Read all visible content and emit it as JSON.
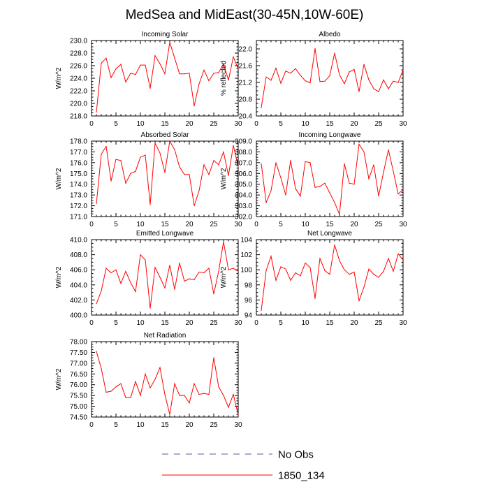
{
  "title": "MedSea and MidEast(30-45N,10W-60E)",
  "legend": [
    {
      "label": "No Obs",
      "color": "#5a5aa8",
      "style": "dashed"
    },
    {
      "label": "1850_134",
      "color": "#ff0000",
      "style": "solid"
    }
  ],
  "chart_data": [
    {
      "type": "line",
      "title": "Incoming Solar",
      "ylabel": "W/m^2",
      "xlim": [
        0,
        30
      ],
      "ylim": [
        218,
        230
      ],
      "xticks": [
        0,
        5,
        10,
        15,
        20,
        25,
        30
      ],
      "yticks": [
        218,
        220,
        222,
        224,
        226,
        228,
        230
      ],
      "ytick_labels": [
        "218.0",
        "220.0",
        "222.0",
        "224.0",
        "226.0",
        "228.0",
        "230.0"
      ],
      "series": [
        {
          "name": "1850_134",
          "color": "#ff0000",
          "x": [
            1,
            2,
            3,
            4,
            5,
            6,
            7,
            8,
            9,
            10,
            11,
            12,
            13,
            14,
            15,
            16,
            17,
            18,
            19,
            20,
            21,
            22,
            23,
            24,
            25,
            26,
            27,
            28,
            29,
            30
          ],
          "values": [
            218.6,
            226.4,
            227.2,
            224.1,
            225.5,
            226.2,
            223.4,
            224.8,
            224.6,
            226.1,
            226.1,
            222.4,
            227.6,
            226.3,
            224.7,
            229.7,
            227.2,
            224.7,
            224.7,
            224.8,
            219.6,
            223.1,
            225.3,
            223.6,
            224.8,
            224.9,
            226.3,
            223.7,
            227.4,
            225.5
          ]
        }
      ]
    },
    {
      "type": "line",
      "title": "Albedo",
      "ylabel": "% reflected",
      "xlim": [
        0,
        30
      ],
      "ylim": [
        20.4,
        22.2
      ],
      "xticks": [
        0,
        5,
        10,
        15,
        20,
        25,
        30
      ],
      "yticks": [
        20.4,
        20.8,
        21.2,
        21.6,
        22.0
      ],
      "ytick_labels": [
        "20.4",
        "20.8",
        "21.2",
        "21.6",
        "22.0"
      ],
      "series": [
        {
          "name": "1850_134",
          "color": "#ff0000",
          "x": [
            1,
            2,
            3,
            4,
            5,
            6,
            7,
            8,
            9,
            10,
            11,
            12,
            13,
            14,
            15,
            16,
            17,
            18,
            19,
            20,
            21,
            22,
            23,
            24,
            25,
            26,
            27,
            28,
            29,
            30
          ],
          "values": [
            20.6,
            21.33,
            21.25,
            21.54,
            21.18,
            21.47,
            21.42,
            21.53,
            21.37,
            21.24,
            21.19,
            22.01,
            21.22,
            21.23,
            21.36,
            21.9,
            21.38,
            21.17,
            21.45,
            21.51,
            20.98,
            21.63,
            21.26,
            21.05,
            20.98,
            21.26,
            21.05,
            21.23,
            21.2,
            21.5
          ]
        }
      ]
    },
    {
      "type": "line",
      "title": "Absorbed Solar",
      "ylabel": "W/m^2",
      "xlim": [
        0,
        30
      ],
      "ylim": [
        171,
        178
      ],
      "xticks": [
        0,
        5,
        10,
        15,
        20,
        25,
        30
      ],
      "yticks": [
        171,
        172,
        173,
        174,
        175,
        176,
        177,
        178
      ],
      "ytick_labels": [
        "171.0",
        "172.0",
        "173.0",
        "174.0",
        "175.0",
        "176.0",
        "177.0",
        "178.0"
      ],
      "series": [
        {
          "name": "1850_134",
          "color": "#ff0000",
          "x": [
            1,
            2,
            3,
            4,
            5,
            6,
            7,
            8,
            9,
            10,
            11,
            12,
            13,
            14,
            15,
            16,
            17,
            18,
            19,
            20,
            21,
            22,
            23,
            24,
            25,
            26,
            27,
            28,
            29,
            30
          ],
          "values": [
            172.2,
            176.8,
            177.5,
            174.3,
            176.3,
            176.2,
            174.1,
            175.0,
            175.2,
            176.5,
            176.7,
            172.1,
            177.8,
            176.9,
            175.1,
            178.0,
            177.2,
            175.6,
            174.9,
            174.9,
            172.0,
            173.4,
            175.8,
            174.9,
            176.2,
            175.8,
            177.0,
            174.8,
            177.6,
            175.6
          ]
        }
      ]
    },
    {
      "type": "line",
      "title": "Incoming Longwave",
      "ylabel": "W/m^2",
      "xlim": [
        0,
        30
      ],
      "ylim": [
        302,
        309
      ],
      "xticks": [
        0,
        5,
        10,
        15,
        20,
        25,
        30
      ],
      "yticks": [
        302,
        303,
        304,
        305,
        306,
        307,
        308,
        309
      ],
      "ytick_labels": [
        "302.0",
        "303.0",
        "304.0",
        "305.0",
        "306.0",
        "307.0",
        "308.0",
        "309.0"
      ],
      "series": [
        {
          "name": "1850_134",
          "color": "#ff0000",
          "x": [
            1,
            2,
            3,
            4,
            5,
            6,
            7,
            8,
            9,
            10,
            11,
            12,
            13,
            14,
            15,
            16,
            17,
            18,
            19,
            20,
            21,
            22,
            23,
            24,
            25,
            26,
            27,
            28,
            29,
            30
          ],
          "values": [
            306.9,
            303.3,
            304.4,
            307.0,
            305.6,
            304.0,
            307.2,
            304.6,
            303.9,
            307.1,
            307.0,
            304.7,
            304.8,
            305.1,
            304.2,
            303.3,
            302.2,
            306.9,
            305.1,
            305.0,
            308.7,
            308.0,
            305.5,
            306.8,
            303.9,
            306.1,
            308.2,
            306.2,
            304.1,
            304.5
          ]
        }
      ]
    },
    {
      "type": "line",
      "title": "Emitted Longwave",
      "ylabel": "W/m^2",
      "xlim": [
        0,
        30
      ],
      "ylim": [
        400,
        410
      ],
      "xticks": [
        0,
        5,
        10,
        15,
        20,
        25,
        30
      ],
      "yticks": [
        400,
        402,
        404,
        406,
        408,
        410
      ],
      "ytick_labels": [
        "400.0",
        "402.0",
        "404.0",
        "406.0",
        "408.0",
        "410.0"
      ],
      "series": [
        {
          "name": "1850_134",
          "color": "#ff0000",
          "x": [
            1,
            2,
            3,
            4,
            5,
            6,
            7,
            8,
            9,
            10,
            11,
            12,
            13,
            14,
            15,
            16,
            17,
            18,
            19,
            20,
            21,
            22,
            23,
            24,
            25,
            26,
            27,
            28,
            29,
            30
          ],
          "values": [
            401.5,
            403.2,
            406.2,
            405.6,
            406.0,
            404.2,
            405.8,
            404.3,
            403.1,
            408.0,
            407.3,
            400.9,
            406.3,
            405.0,
            403.6,
            406.6,
            403.4,
            406.9,
            404.5,
            404.8,
            404.7,
            405.7,
            405.6,
            406.2,
            402.8,
            405.8,
            409.7,
            406.0,
            406.2,
            405.8
          ]
        }
      ]
    },
    {
      "type": "line",
      "title": "Net Longwave",
      "ylabel": "W/m^2",
      "xlim": [
        0,
        30
      ],
      "ylim": [
        94,
        104
      ],
      "xticks": [
        0,
        5,
        10,
        15,
        20,
        25,
        30
      ],
      "yticks": [
        94,
        96,
        98,
        100,
        102,
        104
      ],
      "ytick_labels": [
        "94",
        "96",
        "98",
        "100",
        "102",
        "104"
      ],
      "series": [
        {
          "name": "1850_134",
          "color": "#ff0000",
          "x": [
            1,
            2,
            3,
            4,
            5,
            6,
            7,
            8,
            9,
            10,
            11,
            12,
            13,
            14,
            15,
            16,
            17,
            18,
            19,
            20,
            21,
            22,
            23,
            24,
            25,
            26,
            27,
            28,
            29,
            30
          ],
          "values": [
            94.6,
            99.9,
            101.8,
            98.6,
            100.4,
            100.1,
            98.6,
            99.6,
            99.2,
            100.9,
            100.3,
            96.2,
            101.5,
            99.9,
            99.4,
            103.3,
            101.2,
            100.0,
            99.4,
            99.7,
            95.9,
            97.7,
            100.1,
            99.4,
            99.0,
            99.8,
            101.5,
            99.8,
            102.1,
            101.3
          ]
        }
      ]
    },
    {
      "type": "line",
      "title": "Net Radiation",
      "ylabel": "W/m^2",
      "xlim": [
        0,
        30
      ],
      "ylim": [
        74.5,
        78.0
      ],
      "xticks": [
        0,
        5,
        10,
        15,
        20,
        25,
        30
      ],
      "yticks": [
        74.5,
        75.0,
        75.5,
        76.0,
        76.5,
        77.0,
        77.5,
        78.0
      ],
      "ytick_labels": [
        "74.50",
        "75.00",
        "75.50",
        "76.00",
        "76.50",
        "77.00",
        "77.50",
        "78.00"
      ],
      "series": [
        {
          "name": "1850_134",
          "color": "#ff0000",
          "x": [
            1,
            2,
            3,
            4,
            5,
            6,
            7,
            8,
            9,
            10,
            11,
            12,
            13,
            14,
            15,
            16,
            17,
            18,
            19,
            20,
            21,
            22,
            23,
            24,
            25,
            26,
            27,
            28,
            29,
            30
          ],
          "values": [
            77.55,
            76.75,
            75.65,
            75.7,
            75.9,
            76.05,
            75.4,
            75.4,
            76.15,
            75.5,
            76.5,
            75.85,
            76.25,
            76.8,
            75.55,
            74.62,
            76.05,
            75.5,
            75.5,
            75.15,
            76.05,
            75.55,
            75.6,
            75.55,
            77.25,
            75.9,
            75.5,
            74.95,
            75.55,
            74.6
          ]
        }
      ]
    }
  ]
}
